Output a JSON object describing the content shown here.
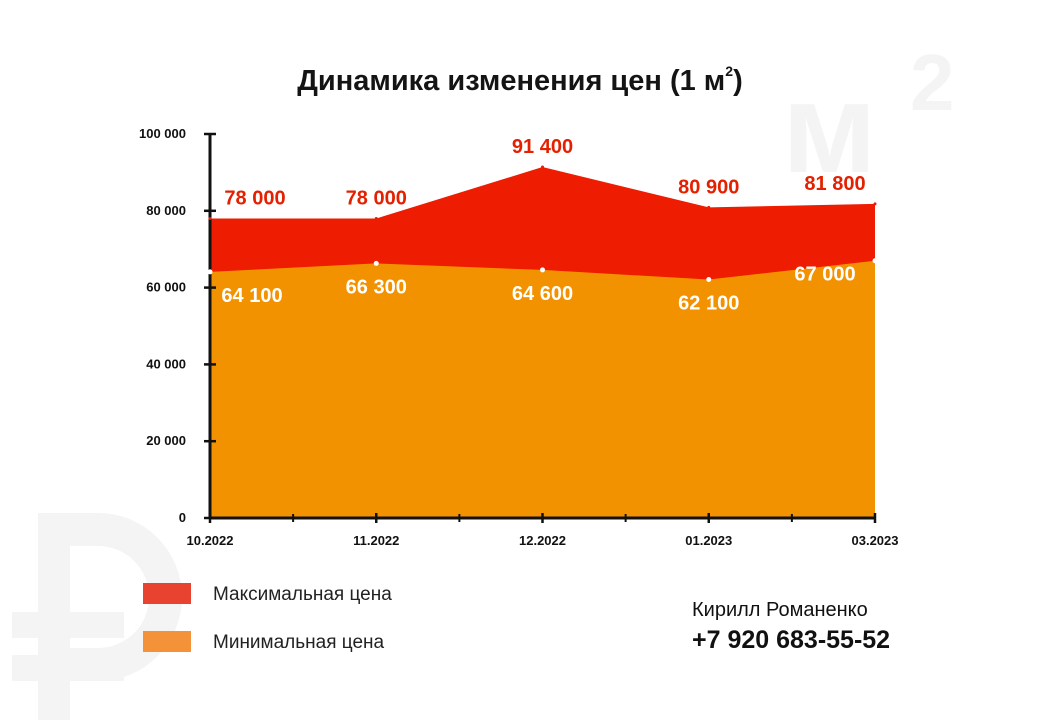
{
  "colors": {
    "max_fill": "#ee1c00",
    "min_fill": "#f39200",
    "max_label": "#e42000",
    "min_label": "#ffffff",
    "legend_max": "#e84330",
    "legend_min": "#f4923a",
    "watermark": "#f4f4f4"
  },
  "watermark": {
    "unit": "м",
    "superscript": "2",
    "currency_icon": "ruble-sign-icon"
  },
  "chart_data": {
    "type": "area",
    "title": "Динамика изменения цен (1 м",
    "title_superscript": "2",
    "title_suffix": ")",
    "categories": [
      "10.2022",
      "11.2022",
      "12.2022",
      "01.2023",
      "03.2023"
    ],
    "series": [
      {
        "name": "Максимальная цена",
        "values": [
          78000,
          78000,
          91400,
          80900,
          81800
        ],
        "labels": [
          "78 000",
          "78 000",
          "91 400",
          "80 900",
          "81 800"
        ]
      },
      {
        "name": "Минимальная цена",
        "values": [
          64100,
          66300,
          64600,
          62100,
          67000
        ],
        "labels": [
          "64 100",
          "66 300",
          "64 600",
          "62 100",
          "67 000"
        ]
      }
    ],
    "ylim": [
      0,
      100000
    ],
    "yticks": [
      0,
      20000,
      40000,
      60000,
      80000,
      100000
    ],
    "ytick_labels": [
      "0",
      "20 000",
      "40 000",
      "60 000",
      "80 000",
      "100 000"
    ],
    "xlabel": "",
    "ylabel": "",
    "grid": false,
    "legend": "bottom-left"
  },
  "contact": {
    "name": "Кирилл Романенко",
    "phone": "+7 920 683-55-52"
  }
}
